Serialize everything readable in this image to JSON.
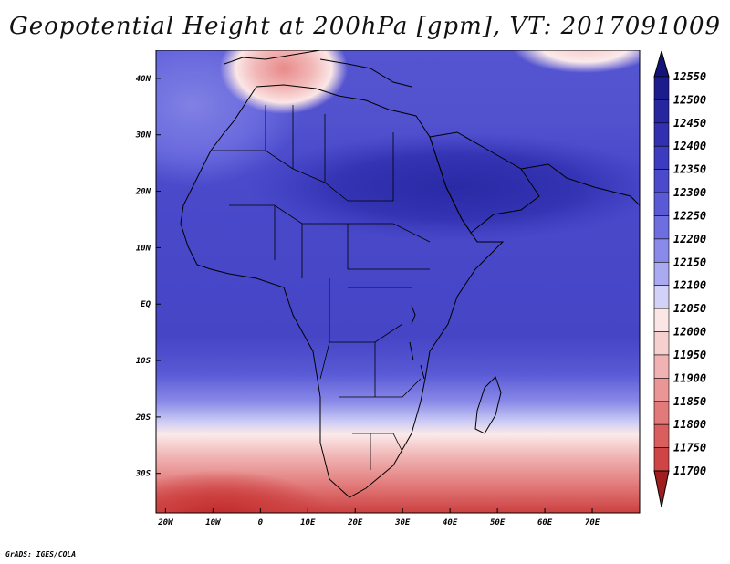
{
  "title": "Geopotential Height at 200hPa [gpm], VT: 2017091009",
  "footer": "GrADS: IGES/COLA",
  "map": {
    "lon_range": [
      -22,
      80
    ],
    "lat_range": [
      -37,
      45
    ],
    "lon_ticks": [
      {
        "value": -20,
        "label": "20W"
      },
      {
        "value": -10,
        "label": "10W"
      },
      {
        "value": 0,
        "label": "0"
      },
      {
        "value": 10,
        "label": "10E"
      },
      {
        "value": 20,
        "label": "20E"
      },
      {
        "value": 30,
        "label": "30E"
      },
      {
        "value": 40,
        "label": "40E"
      },
      {
        "value": 50,
        "label": "50E"
      },
      {
        "value": 60,
        "label": "60E"
      },
      {
        "value": 70,
        "label": "70E"
      }
    ],
    "lat_ticks": [
      {
        "value": 40,
        "label": "40N"
      },
      {
        "value": 30,
        "label": "30N"
      },
      {
        "value": 20,
        "label": "20N"
      },
      {
        "value": 10,
        "label": "10N"
      },
      {
        "value": 0,
        "label": "EQ"
      },
      {
        "value": -10,
        "label": "10S"
      },
      {
        "value": -20,
        "label": "20S"
      },
      {
        "value": -30,
        "label": "30S"
      }
    ]
  },
  "legend": {
    "levels": [
      {
        "label": "12550",
        "color": "#1c1c8c"
      },
      {
        "label": "12500",
        "color": "#26269e"
      },
      {
        "label": "12450",
        "color": "#3030b0"
      },
      {
        "label": "12400",
        "color": "#3c3cc0"
      },
      {
        "label": "12350",
        "color": "#4a4acb"
      },
      {
        "label": "12300",
        "color": "#5a5ad6"
      },
      {
        "label": "12250",
        "color": "#6e6ee0"
      },
      {
        "label": "12200",
        "color": "#8a8ae8"
      },
      {
        "label": "12150",
        "color": "#aaaaf0"
      },
      {
        "label": "12100",
        "color": "#d2d2f8"
      },
      {
        "label": "12050",
        "color": "#fbe6e6"
      },
      {
        "label": "12000",
        "color": "#f6cfcf"
      },
      {
        "label": "11950",
        "color": "#f0b2b2"
      },
      {
        "label": "11900",
        "color": "#ea9696"
      },
      {
        "label": "11850",
        "color": "#e27a7a"
      },
      {
        "label": "11800",
        "color": "#da5e5e"
      },
      {
        "label": "11750",
        "color": "#cf4444"
      },
      {
        "label": "11700",
        "color": "#bc2c2c"
      }
    ],
    "top_arrow_color": "#141478",
    "bottom_arrow_color": "#a01e1e"
  }
}
